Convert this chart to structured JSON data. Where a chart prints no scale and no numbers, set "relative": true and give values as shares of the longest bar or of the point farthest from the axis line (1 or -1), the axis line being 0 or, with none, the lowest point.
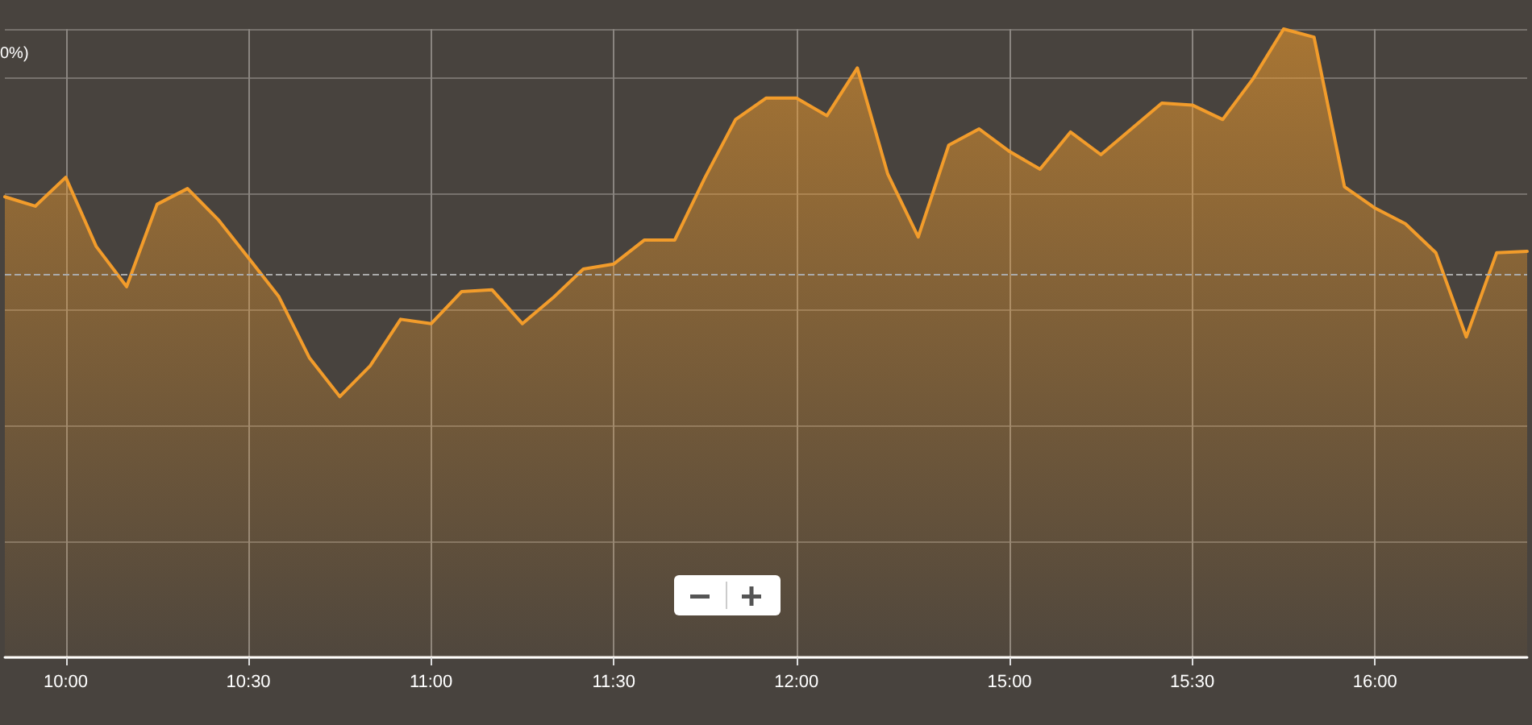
{
  "chart_data": {
    "type": "area",
    "relative": true,
    "color": "#f29c2b",
    "categories": [
      null,
      null,
      "10:00",
      null,
      null,
      null,
      null,
      null,
      "10:30",
      null,
      null,
      null,
      null,
      null,
      "11:00",
      null,
      null,
      null,
      null,
      null,
      "11:30",
      null,
      null,
      null,
      null,
      null,
      "12:00",
      null,
      null,
      null,
      null,
      null,
      null,
      "15:00",
      null,
      null,
      null,
      null,
      null,
      "15:30",
      null,
      null,
      null,
      null,
      null,
      "16:00",
      null,
      null,
      null,
      null,
      null
    ],
    "values": [
      0.733,
      0.718,
      0.764,
      0.654,
      0.59,
      0.721,
      0.746,
      0.697,
      0.636,
      0.574,
      0.477,
      0.415,
      0.464,
      0.538,
      0.531,
      0.582,
      0.585,
      0.531,
      0.572,
      0.618,
      0.626,
      0.664,
      0.664,
      0.764,
      0.856,
      0.89,
      0.89,
      0.862,
      0.938,
      0.769,
      0.669,
      0.815,
      0.841,
      0.805,
      0.777,
      0.836,
      0.8,
      0.841,
      0.882,
      0.879,
      0.856,
      0.921,
      1,
      0.987,
      0.749,
      0.715,
      0.69,
      0.644,
      0.51,
      0.644,
      0.646
    ],
    "ref_lines": [
      {
        "axis": "y",
        "value": 0.608,
        "line_style": "dashed"
      }
    ],
    "annotations": [
      "0%)"
    ],
    "grid": true,
    "marker": "none",
    "line_style": "solid"
  }
}
